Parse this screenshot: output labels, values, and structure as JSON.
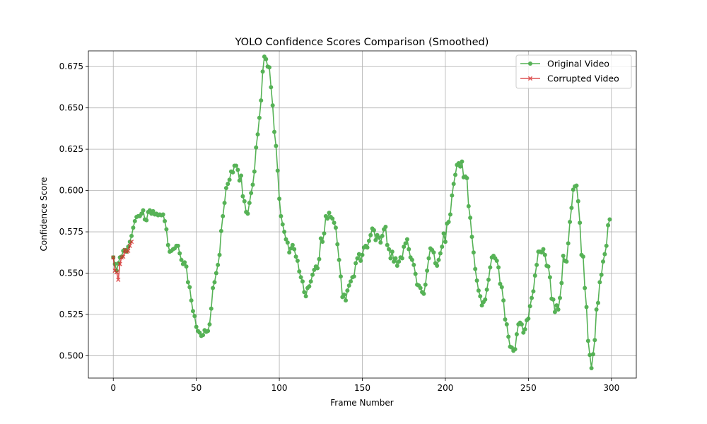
{
  "chart_data": {
    "type": "line",
    "title": "YOLO Confidence Scores Comparison (Smoothed)",
    "xlabel": "Frame Number",
    "ylabel": "Confidence Score",
    "xlim": [
      -15,
      315
    ],
    "ylim": [
      0.4865,
      0.6845
    ],
    "x_ticks": [
      0,
      50,
      100,
      150,
      200,
      250,
      300
    ],
    "y_ticks": [
      0.5,
      0.525,
      0.55,
      0.575,
      0.6,
      0.625,
      0.65,
      0.675
    ],
    "x_tick_labels": [
      "0",
      "50",
      "100",
      "150",
      "200",
      "250",
      "300"
    ],
    "y_tick_labels": [
      "0.500",
      "0.525",
      "0.550",
      "0.575",
      "0.600",
      "0.625",
      "0.650",
      "0.675"
    ],
    "grid": true,
    "legend_position": "upper right",
    "series": [
      {
        "name": "Original Video",
        "color": "#2ca02c",
        "marker": "circle",
        "x_start": 0,
        "x_step": 1,
        "values": [
          0.5595,
          0.5555,
          0.5515,
          0.556,
          0.5595,
          0.56,
          0.5635,
          0.564,
          0.563,
          0.566,
          0.569,
          0.5725,
          0.5775,
          0.5815,
          0.584,
          0.5845,
          0.5845,
          0.586,
          0.588,
          0.5825,
          0.582,
          0.587,
          0.588,
          0.586,
          0.5875,
          0.5855,
          0.586,
          0.585,
          0.5855,
          0.585,
          0.5855,
          0.5815,
          0.5765,
          0.567,
          0.563,
          0.5635,
          0.5645,
          0.565,
          0.5665,
          0.5665,
          0.562,
          0.558,
          0.5555,
          0.5565,
          0.554,
          0.5445,
          0.5415,
          0.5335,
          0.527,
          0.524,
          0.5175,
          0.515,
          0.514,
          0.512,
          0.5125,
          0.5155,
          0.5145,
          0.515,
          0.519,
          0.5285,
          0.541,
          0.5445,
          0.55,
          0.555,
          0.561,
          0.5755,
          0.5845,
          0.5925,
          0.6015,
          0.604,
          0.6065,
          0.6115,
          0.611,
          0.615,
          0.615,
          0.6125,
          0.606,
          0.609,
          0.5965,
          0.5935,
          0.587,
          0.586,
          0.5925,
          0.5985,
          0.6035,
          0.6115,
          0.626,
          0.634,
          0.644,
          0.6545,
          0.672,
          0.681,
          0.6795,
          0.675,
          0.6745,
          0.6625,
          0.6515,
          0.6355,
          0.627,
          0.612,
          0.595,
          0.5845,
          0.5795,
          0.575,
          0.5705,
          0.5685,
          0.5625,
          0.565,
          0.567,
          0.5645,
          0.56,
          0.5575,
          0.551,
          0.5475,
          0.545,
          0.5385,
          0.536,
          0.541,
          0.542,
          0.545,
          0.549,
          0.552,
          0.554,
          0.553,
          0.5585,
          0.571,
          0.569,
          0.574,
          0.5845,
          0.583,
          0.5865,
          0.584,
          0.583,
          0.5805,
          0.5775,
          0.5675,
          0.558,
          0.548,
          0.5355,
          0.537,
          0.5335,
          0.5395,
          0.5425,
          0.545,
          0.5475,
          0.548,
          0.556,
          0.559,
          0.5615,
          0.5575,
          0.561,
          0.5655,
          0.5665,
          0.5655,
          0.5695,
          0.573,
          0.577,
          0.576,
          0.57,
          0.573,
          0.5715,
          0.5685,
          0.5725,
          0.5765,
          0.578,
          0.567,
          0.5645,
          0.559,
          0.563,
          0.557,
          0.559,
          0.5545,
          0.557,
          0.5595,
          0.559,
          0.566,
          0.568,
          0.5705,
          0.5645,
          0.5595,
          0.558,
          0.555,
          0.5495,
          0.543,
          0.5425,
          0.541,
          0.5385,
          0.5375,
          0.543,
          0.5515,
          0.559,
          0.565,
          0.564,
          0.5625,
          0.556,
          0.5545,
          0.558,
          0.562,
          0.566,
          0.574,
          0.569,
          0.58,
          0.581,
          0.5855,
          0.597,
          0.604,
          0.6095,
          0.6155,
          0.6165,
          0.6145,
          0.6175,
          0.608,
          0.6085,
          0.6075,
          0.5905,
          0.5835,
          0.572,
          0.5625,
          0.5525,
          0.5455,
          0.5395,
          0.536,
          0.5305,
          0.5325,
          0.534,
          0.54,
          0.546,
          0.5535,
          0.5595,
          0.5605,
          0.559,
          0.5575,
          0.5535,
          0.5435,
          0.5415,
          0.5335,
          0.522,
          0.519,
          0.5115,
          0.5055,
          0.505,
          0.503,
          0.504,
          0.513,
          0.519,
          0.52,
          0.519,
          0.514,
          0.516,
          0.5215,
          0.5225,
          0.53,
          0.535,
          0.539,
          0.5485,
          0.555,
          0.563,
          0.563,
          0.5625,
          0.5645,
          0.561,
          0.5545,
          0.554,
          0.5475,
          0.5345,
          0.534,
          0.5265,
          0.5305,
          0.528,
          0.535,
          0.544,
          0.5605,
          0.5575,
          0.557,
          0.568,
          0.581,
          0.5895,
          0.6005,
          0.6025,
          0.603,
          0.5935,
          0.5805,
          0.561,
          0.56,
          0.541,
          0.5295,
          0.509,
          0.5005,
          0.4925,
          0.501,
          0.5095,
          0.528,
          0.532,
          0.5445,
          0.549,
          0.557,
          0.5615,
          0.5665,
          0.579,
          0.5825
        ]
      },
      {
        "name": "Corrupted Video",
        "color": "#d62728",
        "marker": "x",
        "x_start": 0,
        "x_step": 1,
        "values": [
          0.5595,
          0.5515,
          0.5505,
          0.546,
          0.5555,
          0.5595,
          0.56,
          0.564,
          0.563,
          0.5635,
          0.5665,
          0.569
        ]
      }
    ]
  }
}
